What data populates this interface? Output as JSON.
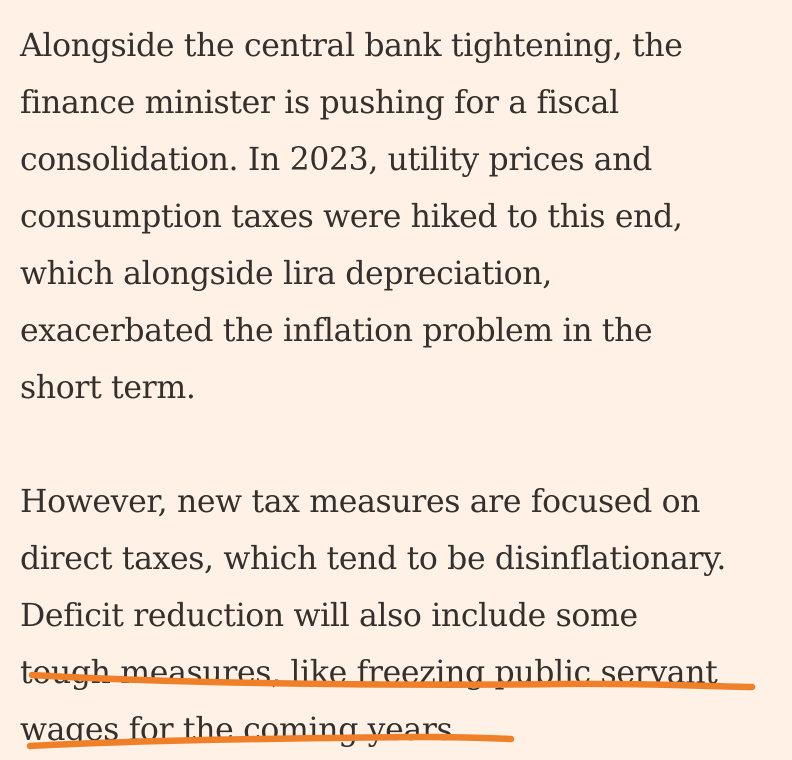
{
  "article": {
    "paragraphs": [
      {
        "lines": [
          "Alongside the central bank tightening, the",
          "finance minister is pushing for a fiscal",
          "consolidation. In 2023, utility prices and",
          "consumption taxes were hiked to this end,",
          "which alongside lira depreciation,",
          "exacerbated the inflation problem in the",
          "short term."
        ]
      },
      {
        "lines": [
          "However, new tax measures are focused on",
          "direct taxes, which tend to be disinflationary.",
          "Deficit reduction will also include some",
          "tough measures, like freezing public servant",
          "wages for the coming years."
        ]
      }
    ]
  },
  "annotation": {
    "color": "#f07f2a"
  }
}
